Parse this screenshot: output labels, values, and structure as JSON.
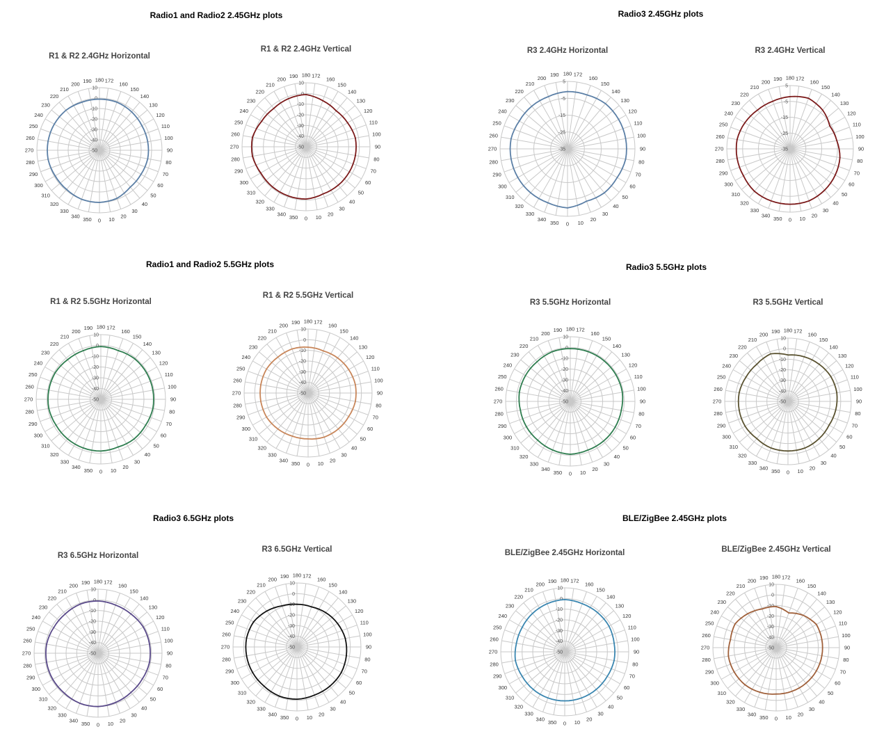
{
  "sections": [
    {
      "title": "Radio1 and Radio2 2.45GHz plots"
    },
    {
      "title": "Radio3 2.45GHz plots"
    },
    {
      "title": "Radio1 and Radio2 5.5GHz plots"
    },
    {
      "title": "Radio3 5.5GHz plots"
    },
    {
      "title": "Radio3 6.5GHz plots"
    },
    {
      "title": "BLE/ZigBee 2.45GHz plots"
    }
  ],
  "chart_data": [
    {
      "type": "polar",
      "title": "R1 & R2 2.4GHz Horizontal",
      "color": "#5b7fa6",
      "angle_ticks": [
        0,
        10,
        20,
        30,
        40,
        50,
        60,
        70,
        80,
        90,
        100,
        110,
        120,
        130,
        140,
        150,
        160,
        172,
        180,
        190,
        200,
        210,
        220,
        230,
        240,
        250,
        260,
        270,
        280,
        290,
        300,
        310,
        320,
        330,
        340,
        350
      ],
      "r_ticks": [
        10,
        0,
        -10,
        -20,
        -30,
        -40,
        -50
      ],
      "rlim": [
        -50,
        10
      ],
      "angles_deg": [
        0,
        20,
        40,
        60,
        80,
        100,
        120,
        140,
        160,
        180,
        200,
        220,
        240,
        260,
        280,
        300,
        320,
        340
      ],
      "values": [
        0,
        -1,
        -4,
        -4,
        -3,
        -3,
        -3,
        -2,
        -1,
        -1,
        -1,
        0,
        0,
        0,
        0,
        -1,
        -1,
        0
      ]
    },
    {
      "type": "polar",
      "title": "R1 & R2 2.4GHz Vertical",
      "color": "#7b1a1a",
      "angle_ticks": [
        0,
        10,
        20,
        30,
        40,
        50,
        60,
        70,
        80,
        90,
        100,
        110,
        120,
        130,
        140,
        150,
        160,
        172,
        180,
        190,
        200,
        210,
        220,
        230,
        240,
        250,
        260,
        270,
        280,
        290,
        300,
        310,
        320,
        330,
        340,
        350
      ],
      "r_ticks": [
        10,
        0,
        -10,
        -20,
        -30,
        -40,
        -50
      ],
      "rlim": [
        -50,
        10
      ],
      "angles_deg": [
        0,
        20,
        40,
        60,
        80,
        100,
        120,
        140,
        160,
        180,
        200,
        220,
        240,
        260,
        280,
        300,
        320,
        340
      ],
      "values": [
        -1,
        -3,
        -3,
        -3,
        -3,
        -3,
        -5,
        -6,
        -4,
        -1,
        -2,
        -3,
        -2,
        1,
        1,
        -1,
        -1,
        -1
      ]
    },
    {
      "type": "polar",
      "title": "R3 2.4GHz Horizontal",
      "color": "#5b7fa6",
      "angle_ticks": [
        0,
        10,
        20,
        30,
        40,
        50,
        60,
        70,
        80,
        90,
        100,
        110,
        120,
        130,
        140,
        150,
        160,
        172,
        180,
        190,
        200,
        210,
        220,
        230,
        240,
        250,
        260,
        270,
        280,
        290,
        300,
        310,
        320,
        330,
        340,
        350
      ],
      "r_ticks": [
        5,
        -5,
        -15,
        -25,
        -35
      ],
      "rlim": [
        -35,
        5
      ],
      "angles_deg": [
        0,
        20,
        40,
        60,
        80,
        100,
        120,
        140,
        160,
        180,
        200,
        220,
        240,
        260,
        280,
        300,
        320,
        340
      ],
      "values": [
        0,
        -2,
        -1,
        -1,
        0,
        0,
        0,
        0,
        -1,
        -1,
        -2,
        -2,
        -2,
        -1,
        -1,
        -1,
        -1,
        -1
      ]
    },
    {
      "type": "polar",
      "title": "R3 2.4GHz Vertical",
      "color": "#7b1a1a",
      "angle_ticks": [
        0,
        10,
        20,
        30,
        40,
        50,
        60,
        70,
        80,
        90,
        100,
        110,
        120,
        130,
        140,
        150,
        160,
        172,
        180,
        190,
        200,
        210,
        220,
        230,
        240,
        250,
        260,
        270,
        280,
        290,
        300,
        310,
        320,
        330,
        340,
        350
      ],
      "r_ticks": [
        5,
        -5,
        -15,
        -25,
        -35
      ],
      "rlim": [
        -35,
        5
      ],
      "angles_deg": [
        0,
        20,
        40,
        60,
        80,
        100,
        120,
        140,
        160,
        180,
        200,
        220,
        240,
        260,
        280,
        300,
        320,
        340
      ],
      "values": [
        0,
        0,
        -1,
        -2,
        -3,
        -5,
        -6,
        -3,
        -1,
        -2,
        -3,
        -3,
        -2,
        -1,
        -1,
        -1,
        0,
        0
      ]
    },
    {
      "type": "polar",
      "title": "R1 & R2 5.5GHz Horizontal",
      "color": "#2e7d4f",
      "angle_ticks": [
        0,
        10,
        20,
        30,
        40,
        50,
        60,
        70,
        80,
        90,
        100,
        110,
        120,
        130,
        140,
        150,
        160,
        172,
        180,
        190,
        200,
        210,
        220,
        230,
        240,
        250,
        260,
        270,
        280,
        290,
        300,
        310,
        320,
        330,
        340,
        350
      ],
      "r_ticks": [
        10,
        0,
        -10,
        -20,
        -30,
        -40,
        -50
      ],
      "rlim": [
        -50,
        10
      ],
      "angles_deg": [
        0,
        20,
        40,
        60,
        80,
        100,
        120,
        140,
        160,
        180,
        200,
        220,
        240,
        260,
        280,
        300,
        320,
        340
      ],
      "values": [
        -2,
        -3,
        -2,
        -2,
        -1,
        -1,
        -1,
        -1,
        -2,
        -1,
        -2,
        -2,
        -1,
        -1,
        -1,
        -2,
        -2,
        -2
      ]
    },
    {
      "type": "polar",
      "title": "R1 & R2 5.5GHz Vertical",
      "color": "#c8865a",
      "angle_ticks": [
        0,
        10,
        20,
        30,
        40,
        50,
        60,
        70,
        80,
        90,
        100,
        110,
        120,
        130,
        140,
        150,
        160,
        172,
        180,
        190,
        200,
        210,
        220,
        230,
        240,
        250,
        260,
        270,
        280,
        290,
        300,
        310,
        320,
        330,
        340,
        350
      ],
      "r_ticks": [
        10,
        0,
        -10,
        -20,
        -30,
        -40,
        -50
      ],
      "rlim": [
        -50,
        10
      ],
      "angles_deg": [
        0,
        20,
        40,
        60,
        80,
        100,
        120,
        140,
        160,
        180,
        200,
        220,
        240,
        260,
        280,
        300,
        320,
        340
      ],
      "values": [
        -7,
        -6,
        -6,
        -6,
        -5,
        -5,
        -6,
        -7,
        -8,
        -7,
        -6,
        -6,
        -5,
        -5,
        -5,
        -5,
        -6,
        -7
      ]
    },
    {
      "type": "polar",
      "title": "R3 5.5GHz Horizontal",
      "color": "#2e7d4f",
      "angle_ticks": [
        0,
        10,
        20,
        30,
        40,
        50,
        60,
        70,
        80,
        90,
        100,
        110,
        120,
        130,
        140,
        150,
        160,
        172,
        180,
        190,
        200,
        210,
        220,
        230,
        240,
        250,
        260,
        270,
        280,
        290,
        300,
        310,
        320,
        330,
        340,
        350
      ],
      "r_ticks": [
        10,
        0,
        -10,
        -20,
        -30,
        -40,
        -50
      ],
      "rlim": [
        -50,
        10
      ],
      "angles_deg": [
        0,
        20,
        40,
        60,
        80,
        100,
        120,
        140,
        160,
        180,
        200,
        220,
        240,
        260,
        280,
        300,
        320,
        340
      ],
      "values": [
        -1,
        -2,
        -2,
        -2,
        -2,
        -1,
        -1,
        -1,
        -1,
        -1,
        -1,
        -2,
        -2,
        -2,
        -3,
        -3,
        -3,
        -2
      ]
    },
    {
      "type": "polar",
      "title": "R3 5.5GHz Vertical",
      "color": "#5a5230",
      "angle_ticks": [
        0,
        10,
        20,
        30,
        40,
        50,
        60,
        70,
        80,
        90,
        100,
        110,
        120,
        130,
        140,
        150,
        160,
        172,
        180,
        190,
        200,
        210,
        220,
        230,
        240,
        250,
        260,
        270,
        280,
        290,
        300,
        310,
        320,
        330,
        340,
        350
      ],
      "r_ticks": [
        10,
        0,
        -10,
        -20,
        -30,
        -40,
        -50
      ],
      "rlim": [
        -50,
        10
      ],
      "angles_deg": [
        0,
        20,
        40,
        60,
        80,
        100,
        120,
        140,
        160,
        180,
        200,
        220,
        240,
        260,
        280,
        300,
        320,
        340
      ],
      "values": [
        -3,
        -3,
        -4,
        -5,
        -4,
        -3,
        -3,
        -4,
        -5,
        -6,
        -2,
        -4,
        -4,
        -3,
        -3,
        -3,
        -4,
        -3
      ]
    },
    {
      "type": "polar",
      "title": "R3 6.5GHz Horizontal",
      "color": "#5a4a8a",
      "angle_ticks": [
        0,
        10,
        20,
        30,
        40,
        50,
        60,
        70,
        80,
        90,
        100,
        110,
        120,
        130,
        140,
        150,
        160,
        172,
        180,
        190,
        200,
        210,
        220,
        230,
        240,
        250,
        260,
        270,
        280,
        290,
        300,
        310,
        320,
        330,
        340,
        350
      ],
      "r_ticks": [
        10,
        0,
        -10,
        -20,
        -30,
        -40,
        -50
      ],
      "rlim": [
        -50,
        10
      ],
      "angles_deg": [
        0,
        20,
        40,
        60,
        80,
        100,
        120,
        140,
        160,
        180,
        200,
        220,
        240,
        260,
        280,
        300,
        320,
        340
      ],
      "values": [
        0,
        -1,
        -2,
        -2,
        -1,
        -1,
        -1,
        -2,
        -2,
        -1,
        -1,
        -2,
        -2,
        -1,
        -1,
        -1,
        -1,
        0
      ]
    },
    {
      "type": "polar",
      "title": "R3 6.5GHz Vertical",
      "color": "#111111",
      "angle_ticks": [
        0,
        10,
        20,
        30,
        40,
        50,
        60,
        70,
        80,
        90,
        100,
        110,
        120,
        130,
        140,
        150,
        160,
        172,
        180,
        190,
        200,
        210,
        220,
        230,
        240,
        250,
        260,
        270,
        280,
        290,
        300,
        310,
        320,
        330,
        340,
        350
      ],
      "r_ticks": [
        10,
        0,
        -10,
        -20,
        -30,
        -40,
        -50
      ],
      "rlim": [
        -50,
        10
      ],
      "angles_deg": [
        0,
        20,
        40,
        60,
        80,
        100,
        120,
        140,
        160,
        180,
        200,
        220,
        240,
        260,
        280,
        300,
        320,
        340
      ],
      "values": [
        -1,
        -2,
        -2,
        -2,
        -3,
        -4,
        -6,
        -8,
        -10,
        -10,
        -9,
        -6,
        -3,
        -2,
        -2,
        -2,
        -2,
        -1
      ]
    },
    {
      "type": "polar",
      "title": "BLE/ZigBee 2.45GHz Horizontal",
      "color": "#3a86b0",
      "angle_ticks": [
        0,
        10,
        20,
        30,
        40,
        50,
        60,
        70,
        80,
        90,
        100,
        110,
        120,
        130,
        140,
        150,
        160,
        172,
        180,
        190,
        200,
        210,
        220,
        230,
        240,
        250,
        260,
        270,
        280,
        290,
        300,
        310,
        320,
        330,
        340,
        350
      ],
      "r_ticks": [
        10,
        0,
        -10,
        -20,
        -30,
        -40,
        -50
      ],
      "rlim": [
        -50,
        10
      ],
      "angles_deg": [
        0,
        20,
        40,
        60,
        80,
        100,
        120,
        140,
        160,
        180,
        200,
        220,
        240,
        260,
        280,
        300,
        320,
        340
      ],
      "values": [
        -4,
        -4,
        -4,
        -4,
        -3,
        -3,
        -2,
        -2,
        -2,
        -1,
        -2,
        -3,
        -4,
        -4,
        -3,
        -4,
        -4,
        -4
      ]
    },
    {
      "type": "polar",
      "title": "BLE/ZigBee 2.45GHz Vertical",
      "color": "#a0603a",
      "angle_ticks": [
        0,
        10,
        20,
        30,
        40,
        50,
        60,
        70,
        80,
        90,
        100,
        110,
        120,
        130,
        140,
        150,
        160,
        172,
        180,
        190,
        200,
        210,
        220,
        230,
        240,
        250,
        260,
        270,
        280,
        290,
        300,
        310,
        320,
        330,
        340,
        350
      ],
      "r_ticks": [
        10,
        0,
        -10,
        -20,
        -30,
        -40,
        -50
      ],
      "rlim": [
        -50,
        10
      ],
      "angles_deg": [
        0,
        20,
        40,
        60,
        80,
        100,
        120,
        140,
        160,
        180,
        200,
        220,
        240,
        260,
        280,
        300,
        320,
        340
      ],
      "values": [
        -6,
        -6,
        -6,
        -6,
        -6,
        -6,
        -6,
        -10,
        -15,
        -11,
        -11,
        -8,
        -5,
        -6,
        -4,
        -4,
        -4,
        -5
      ]
    }
  ]
}
